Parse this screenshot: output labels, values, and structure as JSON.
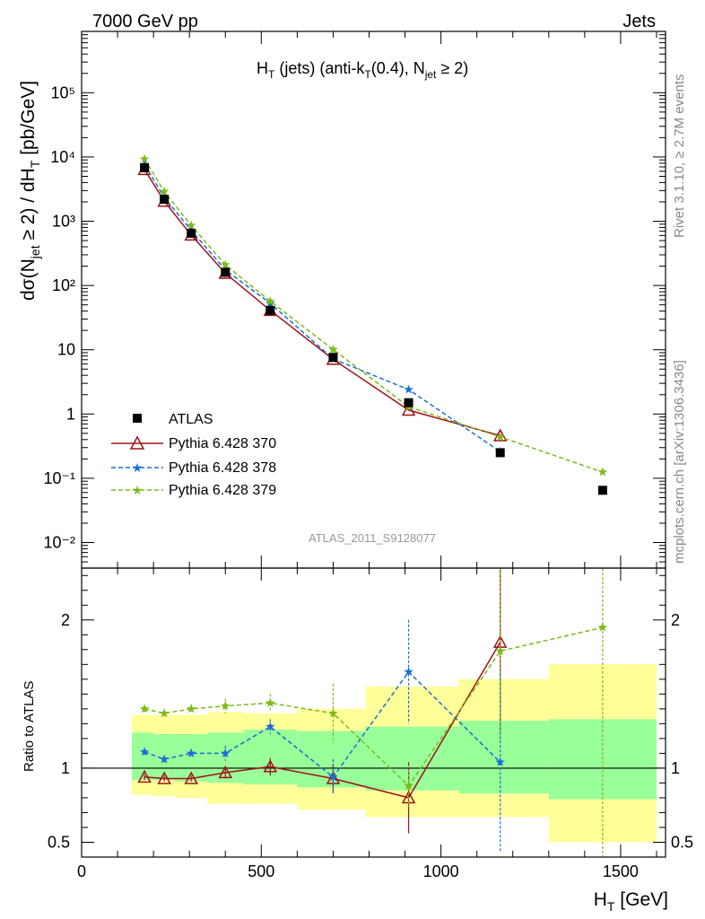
{
  "header": {
    "left": "7000 GeV pp",
    "right": "Jets"
  },
  "side": {
    "rivet": "Rivet 3.1.10, ≥ 2.7M events",
    "mcplots": "mcplots.cern.ch [arXiv:1306.3436]"
  },
  "plot": {
    "title": {
      "main": "H",
      "sub1": "T",
      "part2": " (jets) (anti-k",
      "sub2": "T",
      "part3": "(0.4), N",
      "sub3": "jet",
      "part4": " ≥ 2)"
    },
    "ylabel": {
      "p1": "dσ(N",
      "s1": "jet",
      "p2": " ≥ 2) / dH",
      "s2": "T",
      "p3": " [pb/GeV]"
    },
    "analysis_id": "ATLAS_2011_S9128077",
    "ratio_ylabel": "Ratio to ATLAS",
    "xlabel": {
      "main": "H",
      "sub": "T",
      "rest": " [GeV]"
    }
  },
  "legend": {
    "atlas": "ATLAS",
    "p370": "Pythia 6.428 370",
    "p378": "Pythia 6.428 378",
    "p379": "Pythia 6.428 379"
  },
  "colors": {
    "atlas": "#000000",
    "p370": "#a0111a",
    "p378": "#1a6fd6",
    "p379": "#7dba1a",
    "band_outer": "#ffff99",
    "band_inner": "#99ff99"
  },
  "chart_data": {
    "type": "scatter",
    "xlim": [
      0,
      1625
    ],
    "main": {
      "yscale": "log",
      "ylim": [
        0.004,
        900000
      ],
      "ytick_labels": [
        "10⁻²",
        "10⁻¹",
        "1",
        "10",
        "10²",
        "10³",
        "10⁴",
        "10⁵"
      ],
      "series": [
        {
          "name": "ATLAS",
          "x": [
            175,
            230,
            305,
            400,
            525,
            700,
            910,
            1165,
            1450
          ],
          "y": [
            6800,
            2200,
            650,
            160,
            41,
            7.6,
            1.5,
            0.25,
            0.065
          ]
        },
        {
          "name": "Pythia 6.428 370",
          "x": [
            175,
            230,
            305,
            400,
            525,
            700,
            910,
            1165
          ],
          "y": [
            6400,
            2050,
            610,
            155,
            41,
            7.1,
            1.15,
            0.46
          ]
        },
        {
          "name": "Pythia 6.428 378",
          "x": [
            175,
            230,
            305,
            400,
            525,
            700,
            910,
            1165
          ],
          "y": [
            7600,
            2350,
            720,
            175,
            53,
            7.2,
            2.4,
            0.26
          ]
        },
        {
          "name": "Pythia 6.428 379",
          "x": [
            175,
            230,
            305,
            400,
            525,
            700,
            910,
            1165,
            1450
          ],
          "y": [
            9300,
            2900,
            860,
            210,
            57,
            10.1,
            1.3,
            0.44,
            0.125
          ]
        }
      ]
    },
    "ratio": {
      "ylim": [
        0.4,
        2.35
      ],
      "ytick_labels": [
        "0.5",
        "1",
        "2"
      ],
      "bands": [
        {
          "x0": 140,
          "x1": 200,
          "outer": [
            0.82,
            1.36
          ],
          "inner": [
            0.92,
            1.24
          ]
        },
        {
          "x0": 200,
          "x1": 260,
          "outer": [
            0.81,
            1.36
          ],
          "inner": [
            0.92,
            1.23
          ]
        },
        {
          "x0": 260,
          "x1": 350,
          "outer": [
            0.8,
            1.36
          ],
          "inner": [
            0.91,
            1.23
          ]
        },
        {
          "x0": 350,
          "x1": 450,
          "outer": [
            0.76,
            1.38
          ],
          "inner": [
            0.9,
            1.24
          ]
        },
        {
          "x0": 450,
          "x1": 600,
          "outer": [
            0.76,
            1.37
          ],
          "inner": [
            0.89,
            1.26
          ]
        },
        {
          "x0": 600,
          "x1": 790,
          "outer": [
            0.72,
            1.4
          ],
          "inner": [
            0.87,
            1.25
          ]
        },
        {
          "x0": 790,
          "x1": 1050,
          "outer": [
            0.67,
            1.55
          ],
          "inner": [
            0.85,
            1.28
          ]
        },
        {
          "x0": 1050,
          "x1": 1300,
          "outer": [
            0.67,
            1.6
          ],
          "inner": [
            0.83,
            1.32
          ]
        },
        {
          "x0": 1300,
          "x1": 1600,
          "outer": [
            0.5,
            1.7
          ],
          "inner": [
            0.79,
            1.33
          ]
        }
      ],
      "series": [
        {
          "name": "Pythia 6.428 370",
          "x": [
            175,
            230,
            305,
            400,
            525,
            700,
            910,
            1165
          ],
          "y": [
            0.94,
            0.93,
            0.93,
            0.97,
            1.01,
            0.93,
            0.8,
            1.85
          ],
          "err": [
            0.02,
            0.02,
            0.02,
            0.04,
            0.06,
            0.1,
            0.24,
            0.6
          ]
        },
        {
          "name": "Pythia 6.428 378",
          "x": [
            175,
            230,
            305,
            400,
            525,
            700,
            910,
            1165
          ],
          "y": [
            1.11,
            1.06,
            1.1,
            1.1,
            1.28,
            0.94,
            1.65,
            1.04
          ],
          "err": [
            0.02,
            0.02,
            0.03,
            0.05,
            0.05,
            0.12,
            0.35,
            0.6
          ]
        },
        {
          "name": "Pythia 6.428 379",
          "x": [
            175,
            230,
            305,
            400,
            525,
            700,
            910,
            1165,
            1450
          ],
          "y": [
            1.4,
            1.37,
            1.4,
            1.42,
            1.44,
            1.37,
            0.88,
            1.79,
            1.95
          ],
          "err": [
            0.02,
            0.03,
            0.03,
            0.05,
            0.06,
            0.2,
            0.14,
            0.6,
            2.0
          ]
        }
      ]
    },
    "xtick_labels": [
      "0",
      "500",
      "1000",
      "1500"
    ]
  }
}
